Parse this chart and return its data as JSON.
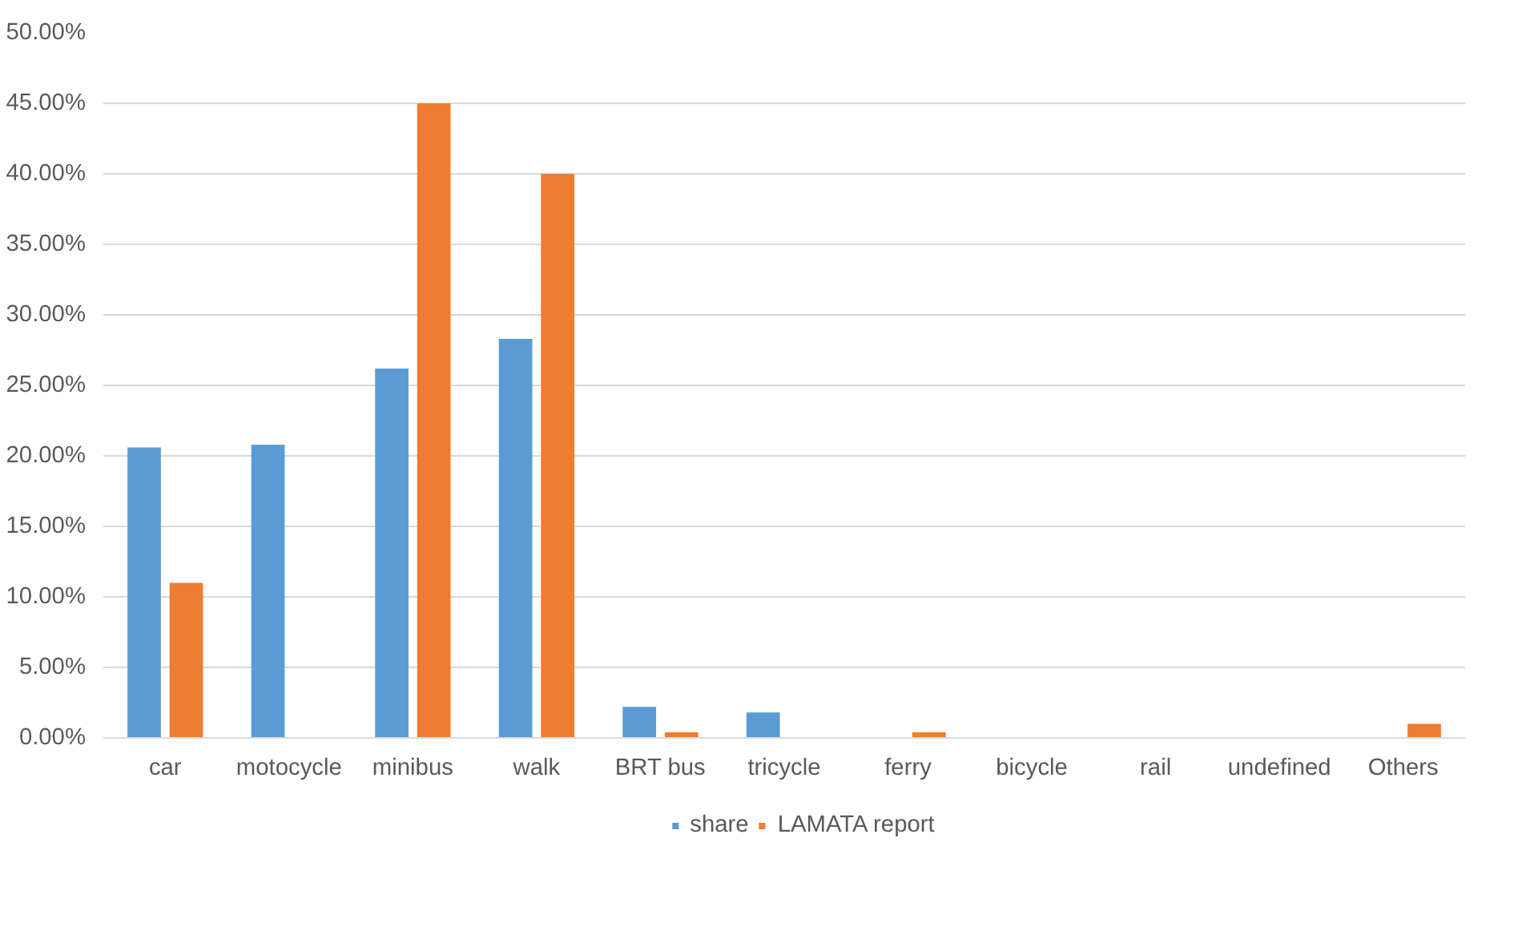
{
  "chart_data": {
    "type": "bar",
    "categories": [
      "car",
      "motocycle",
      "minibus",
      "walk",
      "BRT bus",
      "tricycle",
      "ferry",
      "bicycle",
      "rail",
      "undefined",
      "Others"
    ],
    "series": [
      {
        "name": "share",
        "color": "#5b9bd5",
        "values": [
          20.6,
          20.8,
          26.2,
          28.3,
          2.2,
          1.8,
          0,
          0,
          0,
          0,
          0
        ]
      },
      {
        "name": "LAMATA report",
        "color": "#ed7d31",
        "values": [
          11.0,
          0,
          45.0,
          40.0,
          0.4,
          0,
          0.4,
          0,
          0,
          0,
          1.0
        ]
      }
    ],
    "ylim": [
      0,
      50
    ],
    "yticks": [
      {
        "value": 0,
        "label": "0.00%"
      },
      {
        "value": 5,
        "label": "5.00%"
      },
      {
        "value": 10,
        "label": "10.00%"
      },
      {
        "value": 15,
        "label": "15.00%"
      },
      {
        "value": 20,
        "label": "20.00%"
      },
      {
        "value": 25,
        "label": "25.00%"
      },
      {
        "value": 30,
        "label": "30.00%"
      },
      {
        "value": 35,
        "label": "35.00%"
      },
      {
        "value": 40,
        "label": "40.00%"
      },
      {
        "value": 45,
        "label": "45.00%"
      },
      {
        "value": 50,
        "label": "50.00%"
      }
    ],
    "grid": "y",
    "legend": "bottom"
  }
}
